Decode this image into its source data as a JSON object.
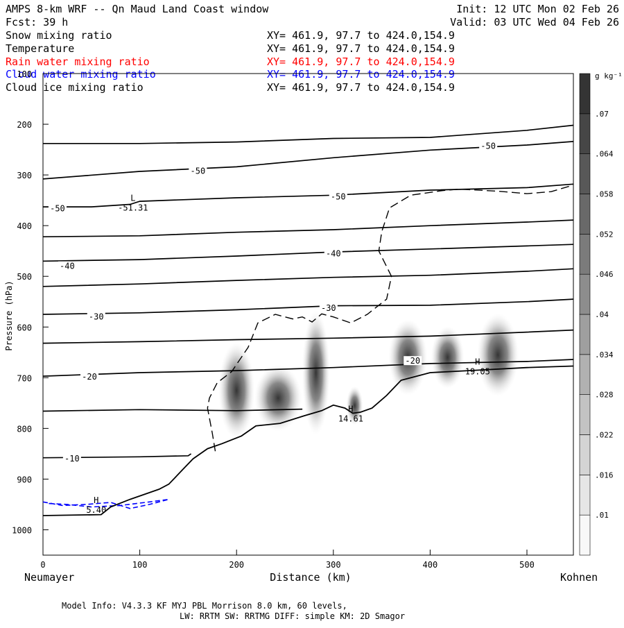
{
  "header": {
    "title_left": "AMPS 8-km WRF -- Qn Maud Land Coast window",
    "init": "Init: 12 UTC Mon 02 Feb 26",
    "fcst": "Fcst:   39 h",
    "valid": "Valid: 03 UTC Wed 04 Feb 26"
  },
  "legend": [
    {
      "name": "Snow mixing ratio",
      "xy": "XY= 461.9, 97.7 to 424.0,154.9",
      "color": "#000000"
    },
    {
      "name": "Temperature",
      "xy": "XY= 461.9, 97.7 to 424.0,154.9",
      "color": "#000000"
    },
    {
      "name": "Rain water mixing ratio",
      "xy": "XY= 461.9, 97.7 to 424.0,154.9",
      "color": "#ff0000"
    },
    {
      "name": "Cloud water mixing ratio",
      "xy": "XY= 461.9, 97.7 to 424.0,154.9",
      "color": "#0000ff"
    },
    {
      "name": "Cloud ice mixing ratio",
      "xy": "XY= 461.9, 97.7 to 424.0,154.9",
      "color": "#000000"
    }
  ],
  "footer": {
    "line1": "Model Info: V4.3.3   KF      MYJ PBL  Morrison             8.0 km,  60 levels,",
    "line2": "LW: RRTM SW: RRTMG   DIFF: simple KM: 2D Smagor"
  },
  "chart_data": {
    "type": "cross-section contour",
    "xlabel": "Distance (km)",
    "ylabel": "Pressure (hPa)",
    "x_left_label": "Neumayer",
    "x_right_label": "Kohnen",
    "xlim": [
      0,
      548
    ],
    "ylim": [
      1050,
      100
    ],
    "x_ticks": [
      0,
      100,
      200,
      300,
      400,
      500
    ],
    "y_ticks": [
      100,
      200,
      300,
      400,
      500,
      600,
      700,
      800,
      900,
      1000
    ],
    "colorbar": {
      "unit": "g kg⁻¹",
      "levels": [
        ".01",
        ".016",
        ".022",
        ".028",
        ".034",
        ".04",
        ".046",
        ".052",
        ".058",
        ".064",
        ".07"
      ]
    },
    "contour_labels": [
      {
        "text": "-50",
        "x": 160,
        "p": 292
      },
      {
        "text": "-50",
        "x": 305,
        "p": 343
      },
      {
        "text": "-50",
        "x": 460,
        "p": 243
      },
      {
        "text": "-50",
        "x": 15,
        "p": 366
      },
      {
        "text": "-40",
        "x": 25,
        "p": 480
      },
      {
        "text": "-40",
        "x": 300,
        "p": 455
      },
      {
        "text": "-30",
        "x": 55,
        "p": 580
      },
      {
        "text": "-30",
        "x": 295,
        "p": 563
      },
      {
        "text": "-20",
        "x": 48,
        "p": 698
      },
      {
        "text": "-20",
        "x": 382,
        "p": 667
      },
      {
        "text": "-10",
        "x": 30,
        "p": 860
      }
    ],
    "extrema": [
      {
        "mark": "L",
        "value": "-51.31",
        "x": 93,
        "p": 362
      },
      {
        "mark": "H",
        "value": "5.40",
        "x": 55,
        "p": 958
      },
      {
        "mark": "H",
        "value": "14.61",
        "x": 318,
        "p": 778
      },
      {
        "mark": "H",
        "value": "19.05",
        "x": 449,
        "p": 685
      }
    ],
    "isotherms": [
      [
        [
          0,
          238
        ],
        [
          100,
          238
        ],
        [
          200,
          235
        ],
        [
          300,
          228
        ],
        [
          400,
          226
        ],
        [
          500,
          212
        ],
        [
          548,
          202
        ]
      ],
      [
        [
          0,
          308
        ],
        [
          100,
          293
        ],
        [
          200,
          284
        ],
        [
          300,
          266
        ],
        [
          400,
          251
        ],
        [
          500,
          241
        ],
        [
          548,
          234
        ]
      ],
      [
        [
          0,
          363
        ],
        [
          50,
          363
        ],
        [
          90,
          358
        ],
        [
          100,
          352
        ],
        [
          200,
          345
        ],
        [
          300,
          340
        ],
        [
          400,
          330
        ],
        [
          500,
          325
        ],
        [
          548,
          318
        ]
      ],
      [
        [
          0,
          422
        ],
        [
          100,
          420
        ],
        [
          200,
          413
        ],
        [
          300,
          408
        ],
        [
          400,
          400
        ],
        [
          500,
          393
        ],
        [
          548,
          389
        ]
      ],
      [
        [
          0,
          470
        ],
        [
          100,
          467
        ],
        [
          200,
          460
        ],
        [
          300,
          452
        ],
        [
          400,
          446
        ],
        [
          500,
          440
        ],
        [
          548,
          437
        ]
      ],
      [
        [
          0,
          520
        ],
        [
          100,
          515
        ],
        [
          200,
          508
        ],
        [
          300,
          502
        ],
        [
          400,
          498
        ],
        [
          500,
          490
        ],
        [
          548,
          485
        ]
      ],
      [
        [
          0,
          575
        ],
        [
          100,
          572
        ],
        [
          200,
          566
        ],
        [
          300,
          558
        ],
        [
          400,
          557
        ],
        [
          500,
          550
        ],
        [
          548,
          545
        ]
      ],
      [
        [
          0,
          632
        ],
        [
          100,
          629
        ],
        [
          200,
          625
        ],
        [
          300,
          622
        ],
        [
          400,
          618
        ],
        [
          500,
          610
        ],
        [
          548,
          606
        ]
      ],
      [
        [
          0,
          697
        ],
        [
          100,
          690
        ],
        [
          200,
          686
        ],
        [
          300,
          680
        ],
        [
          400,
          672
        ],
        [
          500,
          668
        ],
        [
          548,
          664
        ]
      ],
      [
        [
          0,
          766
        ],
        [
          100,
          763
        ],
        [
          200,
          765
        ],
        [
          268,
          762
        ]
      ],
      [
        [
          0,
          858
        ],
        [
          100,
          856
        ],
        [
          150,
          854
        ],
        [
          153,
          850
        ]
      ]
    ],
    "terrain": [
      [
        0,
        972
      ],
      [
        60,
        970
      ],
      [
        70,
        955
      ],
      [
        90,
        940
      ],
      [
        120,
        920
      ],
      [
        130,
        910
      ],
      [
        145,
        880
      ],
      [
        155,
        860
      ],
      [
        170,
        840
      ],
      [
        185,
        830
      ],
      [
        205,
        815
      ],
      [
        220,
        795
      ],
      [
        245,
        790
      ],
      [
        270,
        775
      ],
      [
        288,
        765
      ],
      [
        300,
        754
      ],
      [
        312,
        760
      ],
      [
        320,
        770
      ],
      [
        328,
        768
      ],
      [
        340,
        760
      ],
      [
        355,
        735
      ],
      [
        370,
        705
      ],
      [
        400,
        690
      ],
      [
        450,
        685
      ],
      [
        500,
        680
      ],
      [
        548,
        677
      ]
    ],
    "cloud_ice_outline": [
      [
        178,
        845
      ],
      [
        175,
        810
      ],
      [
        170,
        760
      ],
      [
        172,
        740
      ],
      [
        180,
        710
      ],
      [
        195,
        688
      ],
      [
        212,
        640
      ],
      [
        222,
        592
      ],
      [
        240,
        575
      ],
      [
        258,
        584
      ],
      [
        268,
        580
      ],
      [
        278,
        590
      ],
      [
        288,
        574
      ],
      [
        300,
        580
      ],
      [
        318,
        592
      ],
      [
        335,
        575
      ],
      [
        355,
        545
      ],
      [
        360,
        500
      ],
      [
        347,
        450
      ],
      [
        350,
        412
      ],
      [
        358,
        365
      ],
      [
        380,
        340
      ],
      [
        412,
        331
      ],
      [
        430,
        328
      ],
      [
        470,
        332
      ],
      [
        500,
        337
      ],
      [
        525,
        333
      ],
      [
        548,
        320
      ]
    ],
    "cloud_water_outline": [
      [
        0,
        945
      ],
      [
        20,
        952
      ],
      [
        45,
        950
      ],
      [
        70,
        946
      ],
      [
        90,
        958
      ],
      [
        110,
        950
      ],
      [
        130,
        940
      ],
      [
        110,
        945
      ],
      [
        80,
        952
      ],
      [
        50,
        955
      ],
      [
        25,
        950
      ],
      [
        5,
        948
      ]
    ]
  }
}
